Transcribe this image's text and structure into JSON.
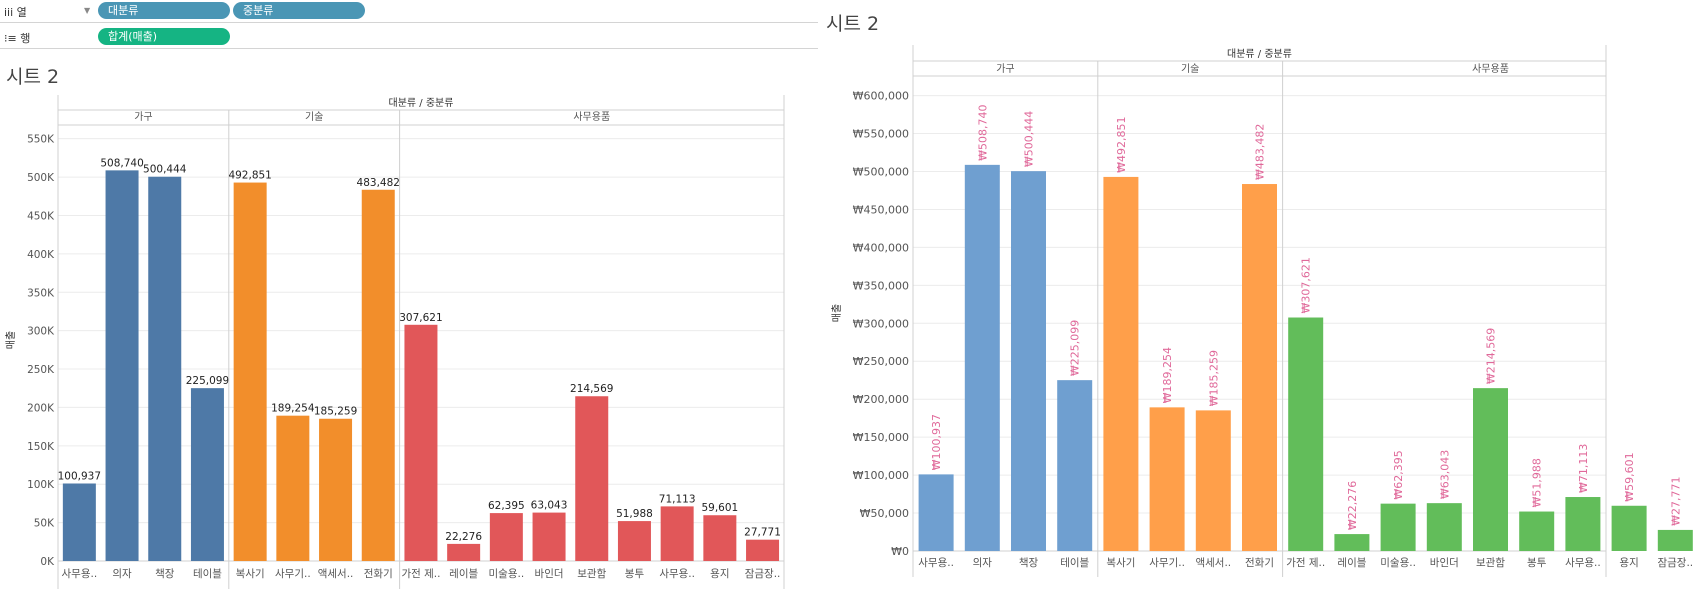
{
  "toolbar": {
    "columns_label": "iii 열",
    "rows_label": "⁝≡ 행",
    "column_pills": [
      "대분류",
      "중분류"
    ],
    "row_pills": [
      "합계(매출)"
    ]
  },
  "colors": {
    "left": {
      "가구": "#4e79a7",
      "기술": "#f28e2b",
      "사무용품": "#e15759"
    },
    "right": {
      "가구": "#6f9fd0",
      "기술": "#ff9f4a",
      "사무용품": "#62bd5a"
    },
    "right_label": "#e0699a",
    "pill_dim": "#4a96b5",
    "pill_measure": "#15b483"
  },
  "chart_data": [
    {
      "type": "bar",
      "sheet_title": "시트 2",
      "header_title": "대분류 / 중분류",
      "ylabel": "매출",
      "ylim": [
        0,
        560000
      ],
      "y_ticks": [
        0,
        50000,
        100000,
        150000,
        200000,
        250000,
        300000,
        350000,
        400000,
        450000,
        500000,
        550000
      ],
      "y_tick_labels": [
        "0K",
        "50K",
        "100K",
        "150K",
        "200K",
        "250K",
        "300K",
        "350K",
        "400K",
        "450K",
        "500K",
        "550K"
      ],
      "groups": [
        {
          "name": "가구",
          "categories": [
            "사무용..",
            "의자",
            "책장",
            "테이블"
          ],
          "values": [
            100937,
            508740,
            500444,
            225099
          ],
          "labels": [
            "100,937",
            "508,740",
            "500,444",
            "225,099"
          ]
        },
        {
          "name": "기술",
          "categories": [
            "복사기",
            "사무기..",
            "액세서..",
            "전화기"
          ],
          "values": [
            492851,
            189254,
            185259,
            483482
          ],
          "labels": [
            "492,851",
            "189,254",
            "185,259",
            "483,482"
          ]
        },
        {
          "name": "사무용품",
          "categories": [
            "가전 제..",
            "레이블",
            "미술용..",
            "바인더",
            "보관함",
            "봉투",
            "사무용..",
            "용지",
            "잠금장.."
          ],
          "values": [
            307621,
            22276,
            62395,
            63043,
            214569,
            51988,
            71113,
            59601,
            27771
          ],
          "labels": [
            "307,621",
            "22,276",
            "62,395",
            "63,043",
            "214,569",
            "51,988",
            "71,113",
            "59,601",
            "27,771"
          ]
        }
      ]
    },
    {
      "type": "bar",
      "sheet_title": "시트 2",
      "header_title": "대분류 / 중분류",
      "ylabel": "매출",
      "ylim": [
        0,
        610000
      ],
      "y_ticks": [
        0,
        50000,
        100000,
        150000,
        200000,
        250000,
        300000,
        350000,
        400000,
        450000,
        500000,
        550000,
        600000
      ],
      "y_tick_labels": [
        "₩0",
        "₩50,000",
        "₩100,000",
        "₩150,000",
        "₩200,000",
        "₩250,000",
        "₩300,000",
        "₩350,000",
        "₩400,000",
        "₩450,000",
        "₩500,000",
        "₩550,000",
        "₩600,000"
      ],
      "groups": [
        {
          "name": "가구",
          "categories": [
            "사무용..",
            "의자",
            "책장",
            "테이블"
          ],
          "values": [
            100937,
            508740,
            500444,
            225099
          ],
          "labels": [
            "₩100,937",
            "₩508,740",
            "₩500,444",
            "₩225,099"
          ]
        },
        {
          "name": "기술",
          "categories": [
            "복사기",
            "사무기..",
            "액세서..",
            "전화기"
          ],
          "values": [
            492851,
            189254,
            185259,
            483482
          ],
          "labels": [
            "₩492,851",
            "₩189,254",
            "₩185,259",
            "₩483,482"
          ]
        },
        {
          "name": "사무용품",
          "categories": [
            "가전 제..",
            "레이블",
            "미술용..",
            "바인더",
            "보관함",
            "봉투",
            "사무용..",
            "용지",
            "잠금장.."
          ],
          "values": [
            307621,
            22276,
            62395,
            63043,
            214569,
            51988,
            71113,
            59601,
            27771
          ],
          "labels": [
            "₩307,621",
            "₩22,276",
            "₩62,395",
            "₩63,043",
            "₩214,569",
            "₩51,988",
            "₩71,113",
            "₩59,601",
            "₩27,771"
          ]
        }
      ]
    }
  ]
}
